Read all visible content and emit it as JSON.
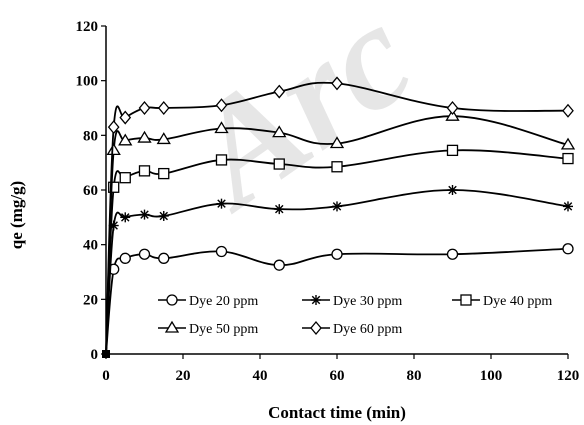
{
  "watermark": "Arc",
  "chart_data": {
    "type": "line",
    "xlabel": "Contact time (min)",
    "ylabel": "qe (mg/g)",
    "xlim": [
      0,
      120
    ],
    "ylim": [
      0,
      120
    ],
    "xticks": [
      0,
      20,
      40,
      60,
      80,
      100,
      120
    ],
    "yticks": [
      0,
      20,
      40,
      60,
      80,
      100,
      120
    ],
    "grid": false,
    "legend_position": "inside-bottom",
    "series": [
      {
        "name": "Dye 20 ppm",
        "marker": "circle",
        "color": "#000000",
        "x": [
          0,
          2,
          5,
          10,
          15,
          30,
          45,
          60,
          90,
          120
        ],
        "y": [
          0,
          31,
          35,
          36.5,
          35,
          37.5,
          32.5,
          36.5,
          36.5,
          38.5
        ]
      },
      {
        "name": "Dye 30 ppm",
        "marker": "star",
        "color": "#000000",
        "x": [
          0,
          2,
          5,
          10,
          15,
          30,
          45,
          60,
          90,
          120
        ],
        "y": [
          0,
          47,
          50,
          51,
          50.5,
          55,
          53,
          54,
          60,
          54
        ]
      },
      {
        "name": "Dye 40 ppm",
        "marker": "square",
        "color": "#000000",
        "x": [
          0,
          2,
          5,
          10,
          15,
          30,
          45,
          60,
          90,
          120
        ],
        "y": [
          0,
          61,
          64.5,
          67,
          66,
          71,
          69.5,
          68.5,
          74.5,
          71.5
        ]
      },
      {
        "name": "Dye 50 ppm",
        "marker": "triangle",
        "color": "#000000",
        "x": [
          0,
          2,
          5,
          10,
          15,
          30,
          45,
          60,
          90,
          120
        ],
        "y": [
          0,
          74.5,
          78,
          79,
          78.5,
          82.5,
          81,
          77,
          87,
          76.5
        ]
      },
      {
        "name": "Dye 60 ppm",
        "marker": "diamond",
        "color": "#000000",
        "x": [
          0,
          2,
          5,
          10,
          15,
          30,
          45,
          60,
          90,
          120
        ],
        "y": [
          0,
          83,
          86.5,
          90,
          90,
          91,
          96,
          99,
          90,
          89
        ]
      }
    ]
  }
}
